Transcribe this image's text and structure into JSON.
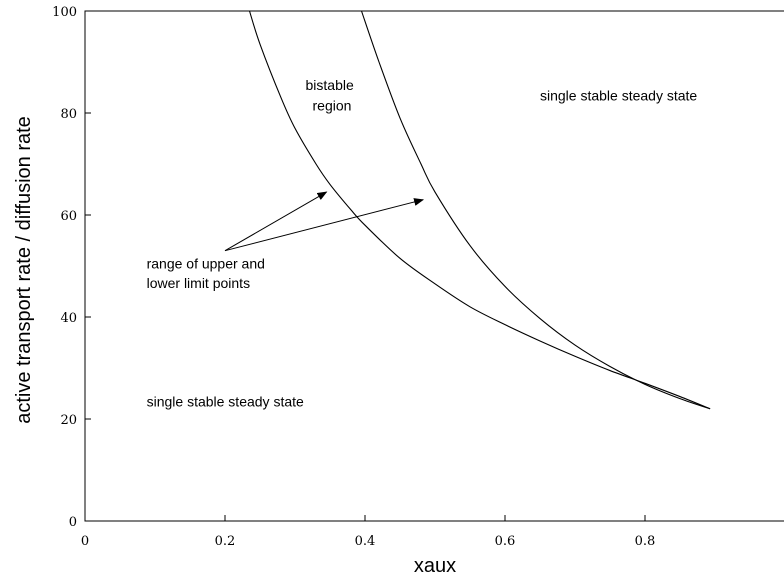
{
  "chart_data": {
    "type": "line",
    "title": "",
    "xlabel": "xaux",
    "ylabel": "active transport rate / diffusion rate",
    "xlim": [
      0,
      1
    ],
    "ylim": [
      0,
      100
    ],
    "x_ticks": [
      0,
      0.2,
      0.4,
      0.6,
      0.8
    ],
    "y_ticks": [
      0,
      20,
      40,
      60,
      80,
      100
    ],
    "x_tick_labels": [
      "0",
      "0.2",
      "0.4",
      "0.6",
      "0.8"
    ],
    "y_tick_labels": [
      "0",
      "20",
      "40",
      "60",
      "80",
      "100"
    ],
    "grid": false,
    "legend": "none",
    "series": [
      {
        "x": [
          0.235,
          0.25,
          0.28,
          0.3,
          0.33,
          0.35,
          0.38,
          0.4,
          0.45,
          0.5,
          0.55,
          0.6,
          0.65,
          0.7,
          0.75,
          0.8,
          0.85,
          0.893
        ],
        "y": [
          100,
          93.5,
          83,
          77,
          70,
          66,
          61,
          58,
          51.5,
          46.5,
          42,
          38.5,
          35.3,
          32.3,
          29.5,
          27,
          24.4,
          22
        ]
      },
      {
        "x": [
          0.395,
          0.42,
          0.45,
          0.48,
          0.5,
          0.55,
          0.6,
          0.65,
          0.7,
          0.75,
          0.8,
          0.85,
          0.893
        ],
        "y": [
          100,
          90,
          79,
          70,
          64.5,
          54,
          46,
          39.7,
          34.5,
          30.3,
          26.8,
          24,
          22
        ]
      }
    ],
    "annotations": [
      {
        "text": "bistable",
        "x": 0.315,
        "y": 84.5
      },
      {
        "text": "region",
        "x": 0.325,
        "y": 80.5
      },
      {
        "text": "single stable steady state",
        "x": 0.65,
        "y": 82.5
      },
      {
        "text": "range of upper and",
        "x": 0.088,
        "y": 49.5
      },
      {
        "text": "lower limit points",
        "x": 0.088,
        "y": 45.7
      },
      {
        "text": "single stable steady state",
        "x": 0.088,
        "y": 22.5
      }
    ],
    "arrows": [
      {
        "from": [
          0.2,
          53
        ],
        "to": [
          0.345,
          64.5
        ]
      },
      {
        "from": [
          0.2,
          53
        ],
        "to": [
          0.483,
          63
        ]
      }
    ]
  }
}
